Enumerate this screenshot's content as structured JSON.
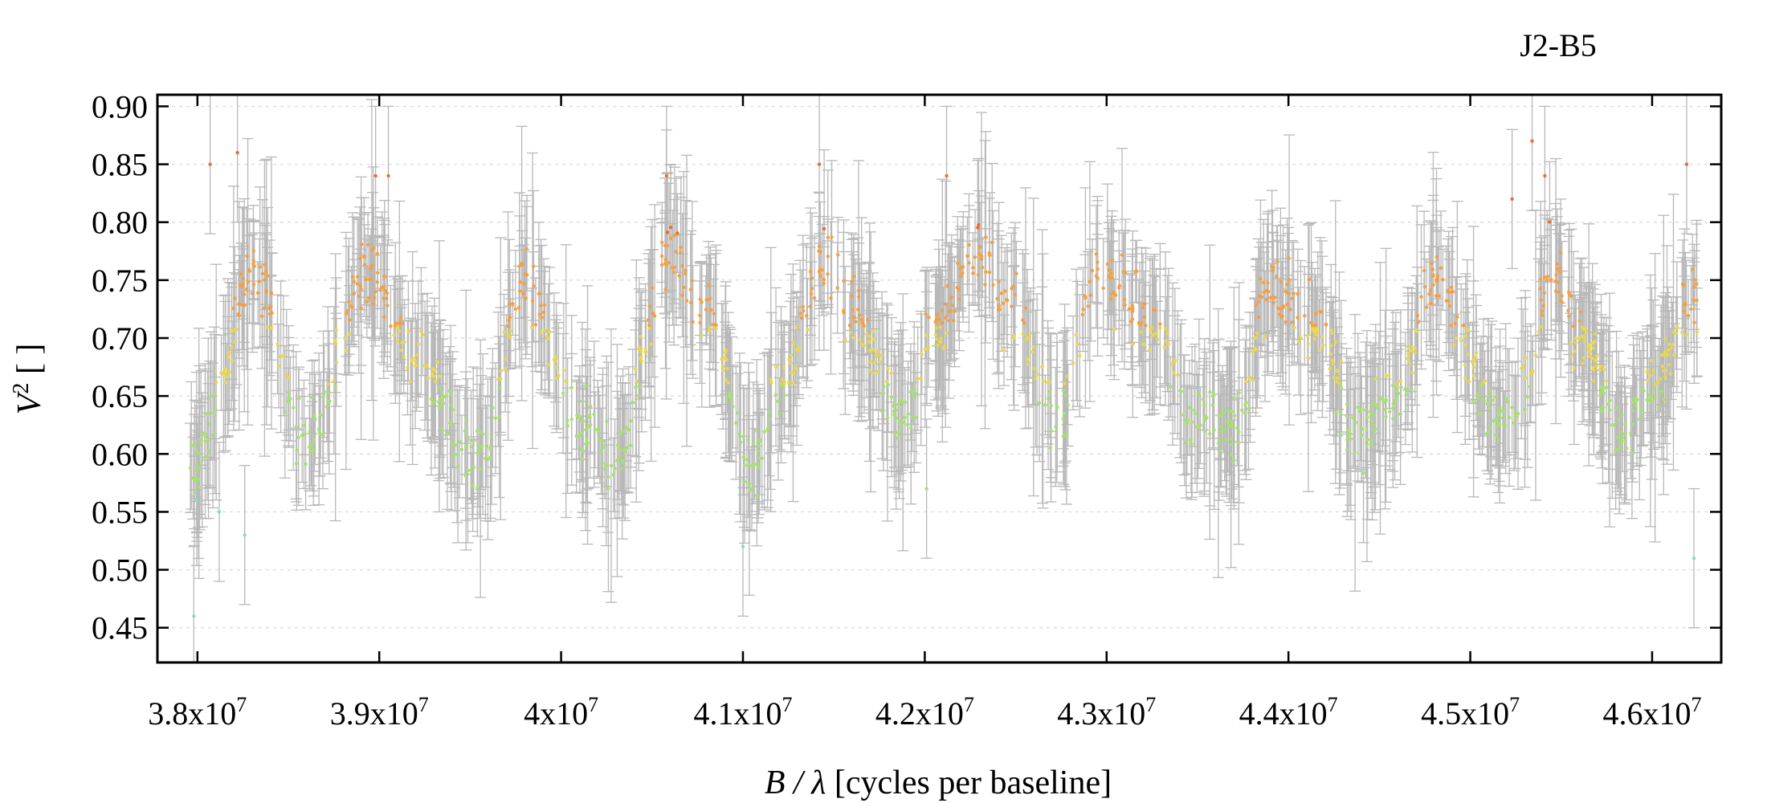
{
  "chart_data": {
    "type": "scatter",
    "title": "J2-B5",
    "xlabel_var": "B / λ",
    "xlabel_unit": " [cycles per baseline]",
    "ylabel_var": "V",
    "ylabel_sup": "2",
    "ylabel_unit": " [ ]",
    "xlim": [
      37780000,
      46380000
    ],
    "ylim": [
      0.42,
      0.91
    ],
    "x_ticks": [
      {
        "value": 38000000,
        "mantissa": "3.8x10",
        "exp": "7"
      },
      {
        "value": 39000000,
        "mantissa": "3.9x10",
        "exp": "7"
      },
      {
        "value": 40000000,
        "mantissa": "4x10",
        "exp": "7"
      },
      {
        "value": 41000000,
        "mantissa": "4.1x10",
        "exp": "7"
      },
      {
        "value": 42000000,
        "mantissa": "4.2x10",
        "exp": "7"
      },
      {
        "value": 43000000,
        "mantissa": "4.3x10",
        "exp": "7"
      },
      {
        "value": 44000000,
        "mantissa": "4.4x10",
        "exp": "7"
      },
      {
        "value": 45000000,
        "mantissa": "4.5x10",
        "exp": "7"
      },
      {
        "value": 46000000,
        "mantissa": "4.6x10",
        "exp": "7"
      }
    ],
    "y_ticks": [
      {
        "value": 0.45,
        "label": "0.45"
      },
      {
        "value": 0.5,
        "label": "0.50"
      },
      {
        "value": 0.55,
        "label": "0.55"
      },
      {
        "value": 0.6,
        "label": "0.60"
      },
      {
        "value": 0.65,
        "label": "0.65"
      },
      {
        "value": 0.7,
        "label": "0.70"
      },
      {
        "value": 0.75,
        "label": "0.75"
      },
      {
        "value": 0.8,
        "label": "0.80"
      },
      {
        "value": 0.85,
        "label": "0.85"
      },
      {
        "value": 0.9,
        "label": "0.90"
      }
    ],
    "grid": "horizontal dotted",
    "error_bar_color": "#b8b8b8",
    "point_colormap": [
      "#7ee0c8",
      "#a8e070",
      "#e8d84a",
      "#f5a040",
      "#f06a30"
    ],
    "envelope": {
      "x": [
        38000000,
        38100000,
        38300000,
        38600000,
        38950000,
        39200000,
        39550000,
        39800000,
        40100000,
        40300000,
        40600000,
        40800000,
        41050000,
        41200000,
        41450000,
        41600000,
        41900000,
        42050000,
        42300000,
        42450000,
        42750000,
        42950000,
        43300000,
        43450000,
        43700000,
        43900000,
        44200000,
        44350000,
        44600000,
        44800000,
        45150000,
        45300000,
        45450000,
        45600000,
        45850000,
        46000000,
        46250000
      ],
      "y": [
        0.59,
        0.64,
        0.76,
        0.61,
        0.76,
        0.68,
        0.59,
        0.75,
        0.63,
        0.6,
        0.77,
        0.72,
        0.59,
        0.66,
        0.77,
        0.72,
        0.63,
        0.7,
        0.78,
        0.73,
        0.63,
        0.76,
        0.7,
        0.63,
        0.62,
        0.74,
        0.7,
        0.62,
        0.65,
        0.75,
        0.63,
        0.66,
        0.76,
        0.7,
        0.62,
        0.66,
        0.74
      ]
    },
    "point_count": 1400,
    "highlight_points": [
      {
        "x": 38070000,
        "y": 0.85
      },
      {
        "x": 38220000,
        "y": 0.86
      },
      {
        "x": 38980000,
        "y": 0.84
      },
      {
        "x": 39050000,
        "y": 0.84
      },
      {
        "x": 40580000,
        "y": 0.84
      },
      {
        "x": 41420000,
        "y": 0.85
      },
      {
        "x": 42120000,
        "y": 0.84
      },
      {
        "x": 45340000,
        "y": 0.87
      },
      {
        "x": 45410000,
        "y": 0.84
      },
      {
        "x": 45230000,
        "y": 0.82
      },
      {
        "x": 46190000,
        "y": 0.85
      },
      {
        "x": 37980000,
        "y": 0.46
      },
      {
        "x": 38120000,
        "y": 0.55
      },
      {
        "x": 38260000,
        "y": 0.53
      },
      {
        "x": 42010000,
        "y": 0.57
      },
      {
        "x": 41000000,
        "y": 0.52
      },
      {
        "x": 46230000,
        "y": 0.51
      }
    ]
  }
}
